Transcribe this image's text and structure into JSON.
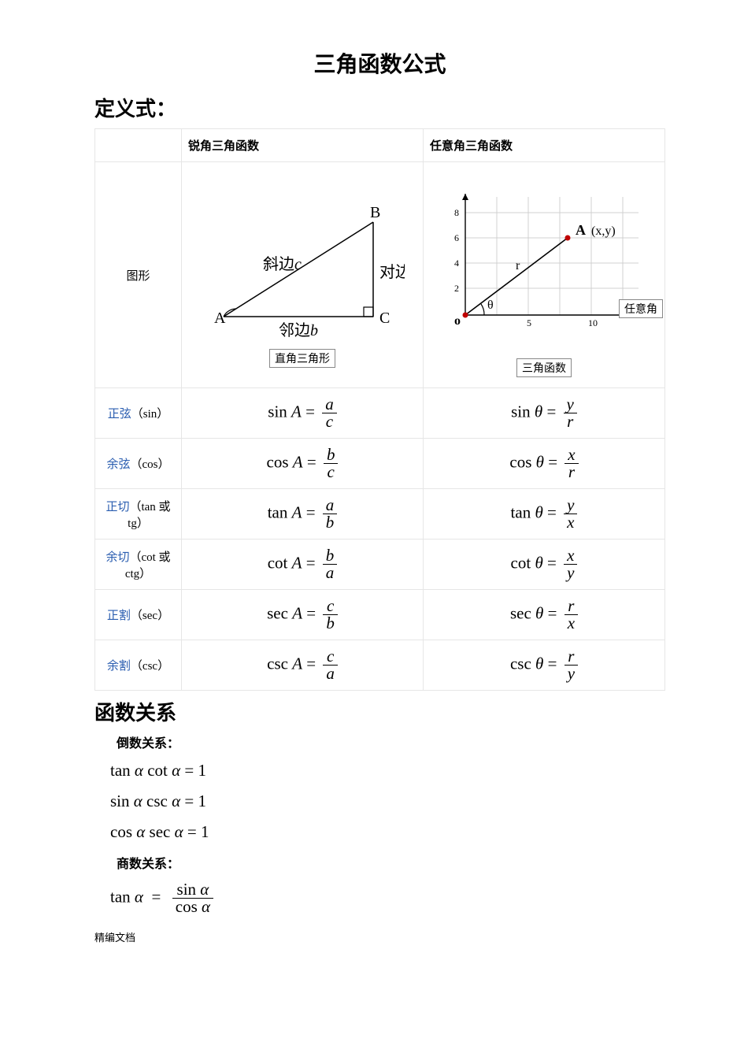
{
  "title": "三角函数公式",
  "section_defs": "定义式：",
  "section_relations": "函数关系",
  "headers": {
    "blank": "",
    "acute": "锐角三角函数",
    "arbitrary": "任意角三角函数"
  },
  "row_diagram_label": "图形",
  "diagram_triangle": {
    "caption": "直角三角形",
    "A": "A",
    "B": "B",
    "C": "C",
    "hypotenuse": "斜边",
    "hyp_var": "c",
    "adjacent": "邻边",
    "adj_var": "b",
    "opposite": "对边",
    "stroke": "#000000",
    "fontsize_label": 20,
    "fontsize_vertex": 20
  },
  "diagram_coord": {
    "caption": "三角函数",
    "side_caption": "任意角",
    "origin": "o",
    "A_label": "A",
    "A_coords": "(x,y)",
    "r_label": "r",
    "theta": "θ",
    "xticks": [
      5,
      10
    ],
    "yticks": [
      2,
      4,
      6,
      8
    ],
    "grid_color": "#d0d0d0",
    "axis_color": "#000000",
    "point_color": "#c00000",
    "xrange": [
      0,
      12
    ],
    "yrange": [
      0,
      9
    ]
  },
  "rows": [
    {
      "link": "正弦",
      "suffix": "（sin）",
      "acute_fn": "sin",
      "acute_arg": "A",
      "acute_num": "a",
      "acute_den": "c",
      "arb_fn": "sin",
      "arb_arg": "θ",
      "arb_num": "y",
      "arb_den": "r"
    },
    {
      "link": "余弦",
      "suffix": "（cos）",
      "acute_fn": "cos",
      "acute_arg": "A",
      "acute_num": "b",
      "acute_den": "c",
      "arb_fn": "cos",
      "arb_arg": "θ",
      "arb_num": "x",
      "arb_den": "r"
    },
    {
      "link": "正切",
      "suffix": "（tan 或 tg）",
      "acute_fn": "tan",
      "acute_arg": "A",
      "acute_num": "a",
      "acute_den": "b",
      "arb_fn": "tan",
      "arb_arg": "θ",
      "arb_num": "y",
      "arb_den": "x"
    },
    {
      "link": "余切",
      "suffix": "（cot 或 ctg）",
      "acute_fn": "cot",
      "acute_arg": "A",
      "acute_num": "b",
      "acute_den": "a",
      "arb_fn": "cot",
      "arb_arg": "θ",
      "arb_num": "x",
      "arb_den": "y"
    },
    {
      "link": "正割",
      "suffix": "（sec）",
      "acute_fn": "sec",
      "acute_arg": "A",
      "acute_num": "c",
      "acute_den": "b",
      "arb_fn": "sec",
      "arb_arg": "θ",
      "arb_num": "r",
      "arb_den": "x"
    },
    {
      "link": "余割",
      "suffix": "（csc）",
      "acute_fn": "csc",
      "acute_arg": "A",
      "acute_num": "c",
      "acute_den": "a",
      "arb_fn": "csc",
      "arb_arg": "θ",
      "arb_num": "r",
      "arb_den": "y"
    }
  ],
  "relations": {
    "reciprocal_heading": "倒数关系：",
    "reciprocal": [
      "tan α cot α = 1",
      "sin α csc α = 1",
      "cos α sec α = 1"
    ],
    "quotient_heading": "商数关系：",
    "quotient_lhs_fn": "tan",
    "quotient_lhs_arg": "α",
    "quotient_num_fn": "sin",
    "quotient_num_arg": "α",
    "quotient_den_fn": "cos",
    "quotient_den_arg": "α"
  },
  "footer": "精编文档",
  "colors": {
    "link": "#2a5db0",
    "border": "#e6e6e6",
    "text": "#000000"
  }
}
